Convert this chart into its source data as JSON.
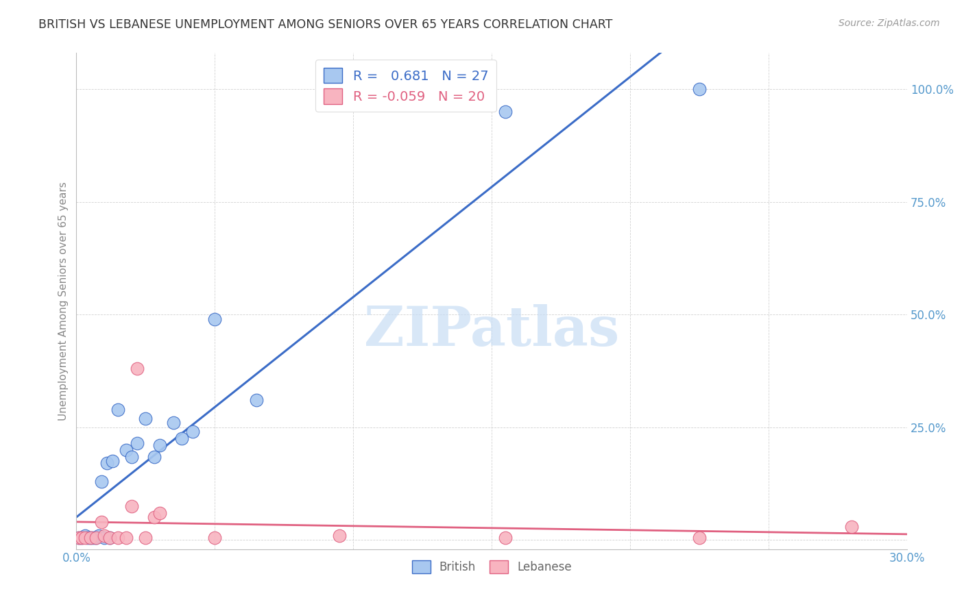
{
  "title": "BRITISH VS LEBANESE UNEMPLOYMENT AMONG SENIORS OVER 65 YEARS CORRELATION CHART",
  "source": "Source: ZipAtlas.com",
  "ylabel": "Unemployment Among Seniors over 65 years",
  "xlim": [
    0.0,
    0.3
  ],
  "ylim": [
    -0.02,
    1.08
  ],
  "british_r": 0.681,
  "british_n": 27,
  "lebanese_r": -0.059,
  "lebanese_n": 20,
  "british_color": "#A8C8F0",
  "lebanese_color": "#F8B4C0",
  "british_line_color": "#3B6CC7",
  "lebanese_line_color": "#E06080",
  "tick_color": "#5599CC",
  "watermark": "ZIPatlas",
  "title_color": "#333333",
  "source_color": "#999999",
  "ylabel_color": "#888888",
  "british_x": [
    0.001,
    0.002,
    0.003,
    0.004,
    0.005,
    0.006,
    0.007,
    0.008,
    0.009,
    0.01,
    0.011,
    0.012,
    0.013,
    0.015,
    0.018,
    0.02,
    0.022,
    0.025,
    0.028,
    0.03,
    0.035,
    0.038,
    0.042,
    0.05,
    0.065,
    0.155,
    0.225
  ],
  "british_y": [
    0.005,
    0.005,
    0.01,
    0.005,
    0.005,
    0.005,
    0.005,
    0.01,
    0.13,
    0.005,
    0.17,
    0.005,
    0.175,
    0.29,
    0.2,
    0.185,
    0.215,
    0.27,
    0.185,
    0.21,
    0.26,
    0.225,
    0.24,
    0.49,
    0.31,
    0.95,
    1.0
  ],
  "lebanese_x": [
    0.001,
    0.002,
    0.003,
    0.005,
    0.007,
    0.009,
    0.01,
    0.012,
    0.015,
    0.018,
    0.02,
    0.022,
    0.025,
    0.028,
    0.03,
    0.05,
    0.095,
    0.155,
    0.225,
    0.28
  ],
  "lebanese_y": [
    0.005,
    0.005,
    0.005,
    0.005,
    0.005,
    0.04,
    0.01,
    0.005,
    0.005,
    0.005,
    0.075,
    0.38,
    0.005,
    0.05,
    0.06,
    0.005,
    0.01,
    0.005,
    0.005,
    0.03
  ]
}
